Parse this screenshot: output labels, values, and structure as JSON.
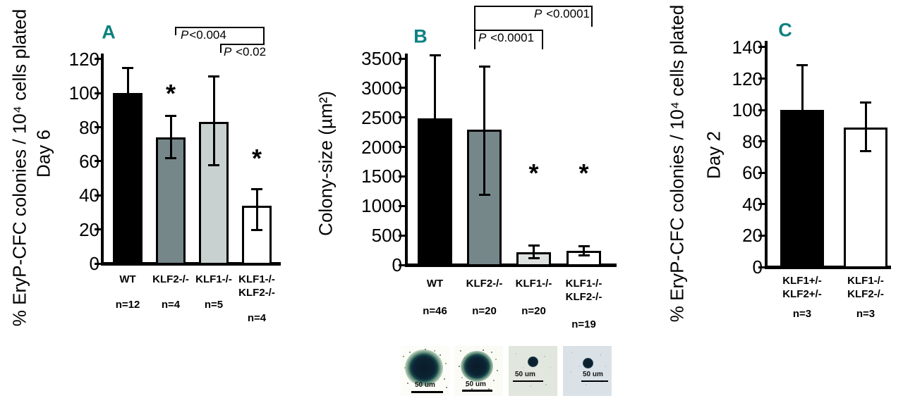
{
  "figure": {
    "background": "#ffffff",
    "accent_color": "#0d8180",
    "sig_symbol": "*"
  },
  "chart_data": [
    {
      "id": "A",
      "type": "bar",
      "panel_letter": "A",
      "ylabel": "% EryP-CFC colonies / 10⁴ cells plated",
      "ylabel_sub": "Day 6",
      "xlabel": "",
      "ylim": [
        0,
        120
      ],
      "yticks": [
        0,
        20,
        40,
        60,
        80,
        100,
        120
      ],
      "grid": false,
      "legend": null,
      "categories": [
        [
          "WT"
        ],
        [
          "KLF2-/-"
        ],
        [
          "KLF1-/-"
        ],
        [
          "KLF1-/-",
          "KLF2-/-"
        ]
      ],
      "n_labels": [
        "n=12",
        "n=4",
        "n=5",
        "n=4"
      ],
      "values": [
        100,
        74,
        83,
        34
      ],
      "error_low": [
        100,
        62,
        58,
        20
      ],
      "error_high": [
        115,
        87,
        110,
        44
      ],
      "bar_colors": [
        "#000000",
        "#76878a",
        "#c9d0d0",
        "#ffffff"
      ],
      "asterisks": [
        {
          "bar": 1,
          "at": 102
        },
        {
          "bar": 3,
          "at": 64
        }
      ],
      "brackets": [
        {
          "label": "P<0.004",
          "from": 1,
          "to": 3
        },
        {
          "label": "P <0.02",
          "from": 2,
          "to": 3
        }
      ]
    },
    {
      "id": "B",
      "type": "bar",
      "panel_letter": "B",
      "ylabel": "Colony-size (µm²)",
      "ylabel_sub": null,
      "xlabel": "",
      "ylim": [
        0,
        3500
      ],
      "yticks": [
        0,
        500,
        1000,
        1500,
        2000,
        2500,
        3000,
        3500
      ],
      "grid": false,
      "legend": null,
      "categories": [
        [
          "WT"
        ],
        [
          "KLF2-/-"
        ],
        [
          "KLF1-/-"
        ],
        [
          "KLF1-/-",
          "KLF2-/-"
        ]
      ],
      "n_labels": [
        "n=46",
        "n=20",
        "n=20",
        "n=19"
      ],
      "values": [
        2480,
        2290,
        210,
        240
      ],
      "error_low": [
        2480,
        1200,
        120,
        165
      ],
      "error_high": [
        3560,
        3370,
        330,
        320
      ],
      "bar_colors": [
        "#000000",
        "#76878a",
        "#dde2e0",
        "#ffffff"
      ],
      "asterisks": [
        {
          "bar": 2,
          "at": 1625
        },
        {
          "bar": 3,
          "at": 1625
        }
      ],
      "brackets": [
        {
          "label": "P <0.0001",
          "from": 1,
          "to": 3
        },
        {
          "label": "P <0.0001",
          "from": 1,
          "to": 2
        }
      ]
    },
    {
      "id": "C",
      "type": "bar",
      "panel_letter": "C",
      "ylabel": "% EryP-CFC colonies / 10⁴ cells plated",
      "ylabel_sub": "Day 2",
      "xlabel": "",
      "ylim": [
        0,
        140
      ],
      "yticks": [
        0,
        20,
        40,
        60,
        80,
        100,
        120,
        140
      ],
      "grid": false,
      "legend": null,
      "categories": [
        [
          "KLF1+/-",
          "KLF2+/-"
        ],
        [
          "KLF1-/-",
          "KLF2-/-"
        ]
      ],
      "n_labels": [
        "n=3",
        "n=3"
      ],
      "values": [
        100,
        89
      ],
      "error_low": [
        100,
        74
      ],
      "error_high": [
        129,
        105
      ],
      "bar_colors": [
        "#000000",
        "#ffffff"
      ],
      "asterisks": [],
      "brackets": []
    }
  ],
  "micrographs": [
    {
      "scale_label": "50 um",
      "variant": "large-colony-wt"
    },
    {
      "scale_label": "50 um",
      "variant": "large-colony-klf2-null"
    },
    {
      "scale_label": "50 um",
      "variant": "small-colony-klf1-null"
    },
    {
      "scale_label": "50 um",
      "variant": "small-colony-klf1-klf2-null"
    }
  ]
}
